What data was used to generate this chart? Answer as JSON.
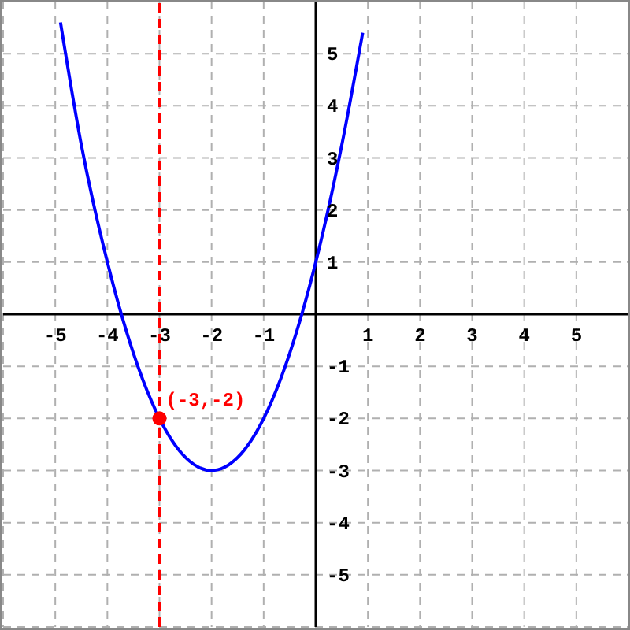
{
  "chart_data": {
    "type": "line",
    "series": [
      {
        "x": [
          -4.9,
          -4.5,
          -4,
          -3.5,
          -3,
          -2.5,
          -2,
          -1.5,
          -1,
          -0.5,
          0,
          0.5,
          0.9
        ],
        "values": [
          5.6,
          3.25,
          1,
          -0.75,
          -2,
          -2.75,
          -3,
          -2.75,
          -2,
          -0.75,
          1,
          3.25,
          5.4
        ],
        "color": "#0000ff",
        "marker": "none"
      },
      {
        "type": "scatter",
        "x": [
          -3
        ],
        "values": [
          -2
        ],
        "color": "#ff0000",
        "marker": "circle"
      }
    ],
    "xlim": [
      -6,
      6
    ],
    "ylim": [
      -6,
      6
    ],
    "xticks": [
      -5,
      -4,
      -3,
      -2,
      -1,
      1,
      2,
      3,
      4,
      5
    ],
    "yticks": [
      -5,
      -4,
      -3,
      -2,
      -1,
      1,
      2,
      3,
      4,
      5
    ],
    "grid": true,
    "ref_lines": [
      {
        "axis": "x",
        "value": -3,
        "color": "#ff0000",
        "line_style": "dashed"
      }
    ],
    "annotations": [
      {
        "text": "(-3,-2)",
        "x": -3,
        "y": -2
      }
    ]
  }
}
